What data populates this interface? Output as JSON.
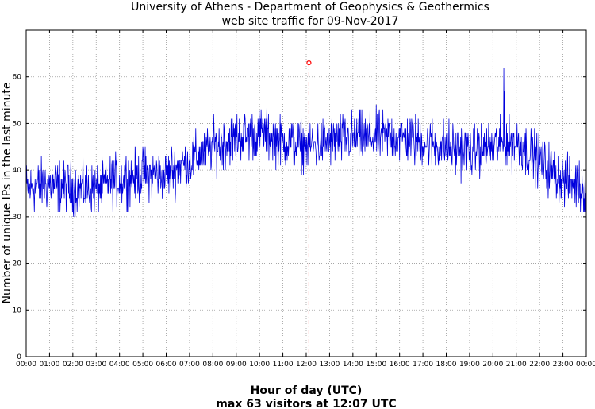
{
  "chart_data": {
    "type": "line",
    "title": "University of Athens - Department of Geophysics & Geothermics",
    "subtitle": "web site traffic for 09-Nov-2017",
    "xlabel": "Hour of day (UTC)",
    "ylabel": "Number of unique IPs in the last minute",
    "footer": "max 63 visitors at 12:07 UTC",
    "xlim": [
      0,
      1440
    ],
    "ylim": [
      0,
      70
    ],
    "x_ticks": [
      "00:00",
      "01:00",
      "02:00",
      "03:00",
      "04:00",
      "05:00",
      "06:00",
      "07:00",
      "08:00",
      "09:00",
      "10:00",
      "11:00",
      "12:00",
      "13:00",
      "14:00",
      "15:00",
      "16:00",
      "17:00",
      "18:00",
      "19:00",
      "20:00",
      "21:00",
      "22:00",
      "23:00",
      "00:00"
    ],
    "y_ticks": [
      0,
      10,
      20,
      30,
      40,
      50,
      60
    ],
    "grid": true,
    "mean_line": {
      "value": 43,
      "color": "#00cc00"
    },
    "max_point": {
      "minute": 727,
      "value": 63,
      "color": "#ff0000"
    },
    "series": [
      {
        "color": "#0000dd",
        "hourly_x": [
          0,
          60,
          120,
          180,
          240,
          300,
          360,
          420,
          480,
          540,
          600,
          660,
          720,
          780,
          840,
          900,
          960,
          1020,
          1080,
          1140,
          1200,
          1260,
          1320,
          1380,
          1440
        ],
        "hourly_values": [
          36,
          37,
          36,
          36,
          38,
          39,
          39,
          42,
          45,
          47,
          48,
          46,
          45,
          46,
          47,
          47,
          47,
          46,
          45,
          44,
          45,
          46,
          42,
          38,
          36
        ]
      }
    ]
  }
}
